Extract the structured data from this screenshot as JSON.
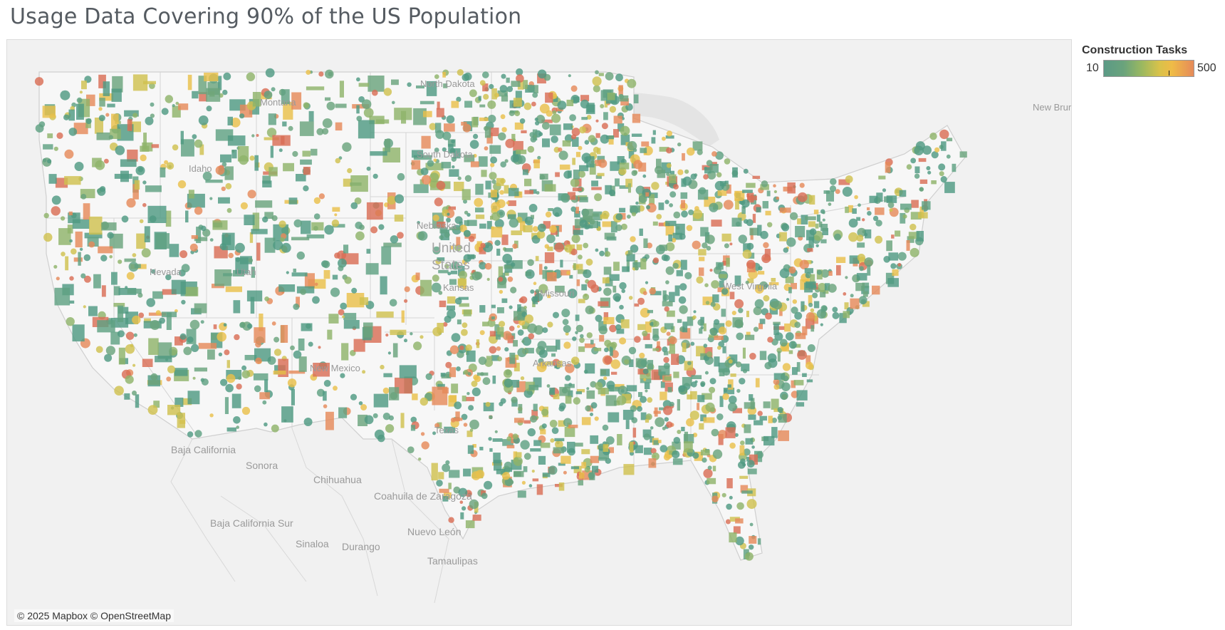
{
  "title": "Usage Data Covering 90% of the US Population",
  "legend": {
    "title": "Construction Tasks",
    "min_label": "10",
    "max_label": "500",
    "min_value": 10,
    "max_value": 500,
    "colors": [
      "#5b9a86",
      "#6aa37c",
      "#9ab860",
      "#d9c24a",
      "#efbb47",
      "#e58a5a"
    ]
  },
  "attribution": "© 2025 Mapbox © OpenStreetMap",
  "map": {
    "country_label": [
      "United",
      "States"
    ],
    "state_labels": [
      "North Dakota",
      "Montana",
      "Idaho",
      "South Dakota",
      "Nebraska",
      "Nevada",
      "Utah",
      "Kansas",
      "Missouri",
      "West Virginia",
      "New Mexico",
      "Texas",
      "Arkansas"
    ],
    "mexico_labels": [
      "Baja California",
      "Sonora",
      "Chihuahua",
      "Coahuila de Zaragoza",
      "Baja California Sur",
      "Sinaloa",
      "Durango",
      "Nuevo León",
      "Tamaulipas"
    ],
    "canada_labels": [
      "New Brunswick"
    ],
    "data_colors": [
      "#4f9a83",
      "#5fa183",
      "#6aa37c",
      "#8fb36a",
      "#cfc14f",
      "#e9c04a",
      "#e58a5a",
      "#d96e56"
    ]
  }
}
